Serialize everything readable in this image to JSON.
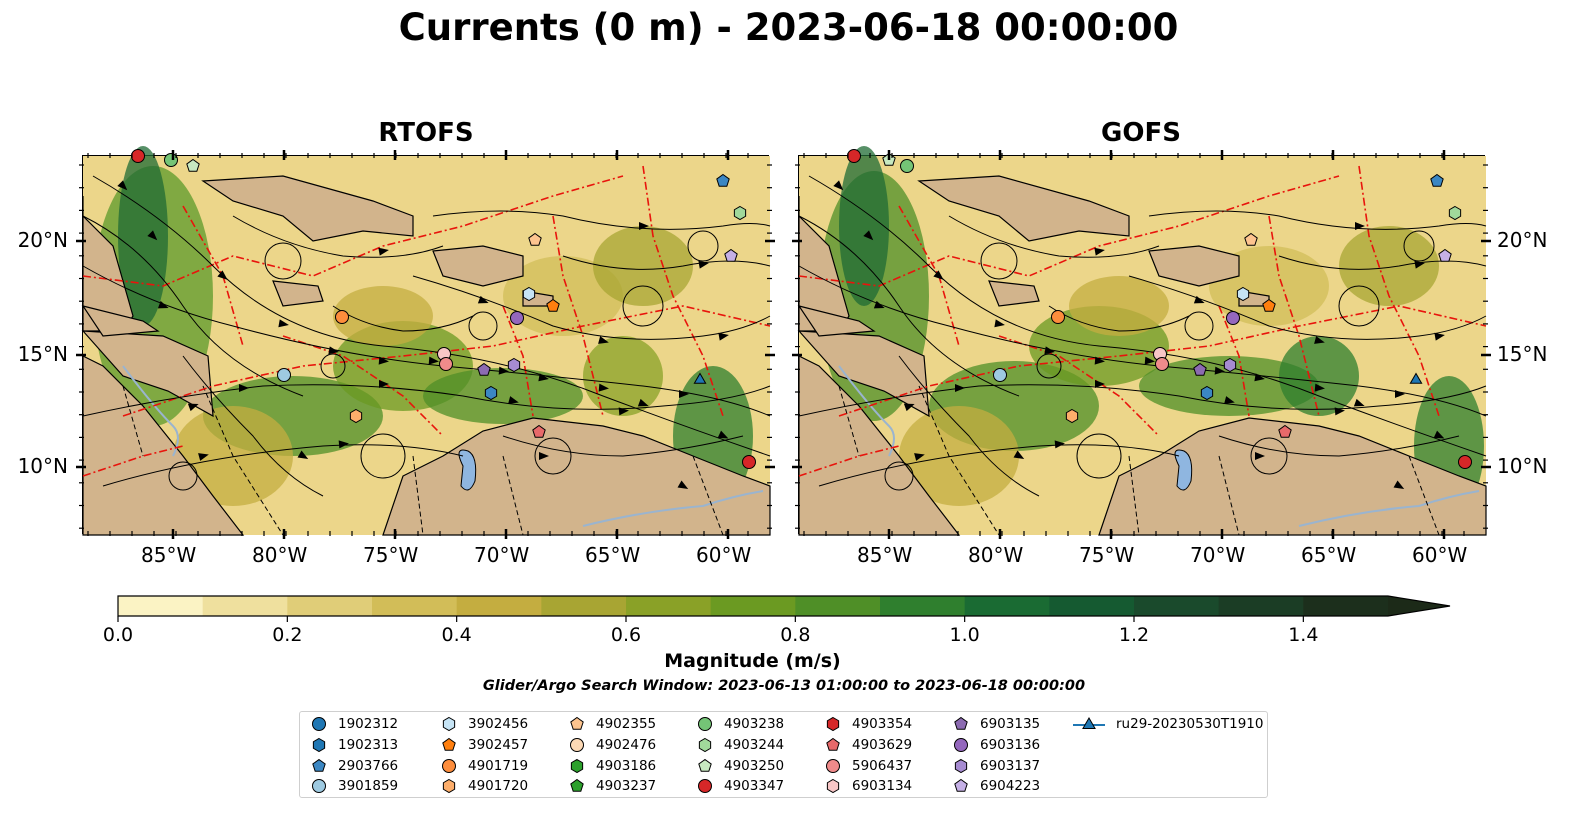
{
  "title": "Currents (0 m) - 2023-06-18 00:00:00",
  "panels": [
    {
      "title": "RTOFS"
    },
    {
      "title": "GOFS"
    }
  ],
  "x_ticks": [
    "85°W",
    "80°W",
    "75°W",
    "70°W",
    "65°W",
    "60°W"
  ],
  "y_ticks": [
    "20°N",
    "15°N",
    "10°N"
  ],
  "colorbar": {
    "label": "Magnitude (m/s)",
    "ticks": [
      "0.0",
      "0.2",
      "0.4",
      "0.6",
      "0.8",
      "1.0",
      "1.2",
      "1.4"
    ],
    "range": [
      0,
      1.5
    ],
    "extend": "max",
    "colors": [
      "#fbf3c4",
      "#efe09e",
      "#e0cd78",
      "#d2bd58",
      "#c4ad40",
      "#a8a533",
      "#8aa127",
      "#6b9a22",
      "#4f8f27",
      "#2f7f2e",
      "#1a6b33",
      "#155a31",
      "#1a4a2c",
      "#1b3d25",
      "#1c2f1c"
    ]
  },
  "search_window": "Glider/Argo Search Window: 2023-06-13 01:00:00 to 2023-06-18 00:00:00",
  "legend": [
    {
      "label": "1902312",
      "marker": "circle",
      "color": "#1f77b4"
    },
    {
      "label": "1902313",
      "marker": "hexagon",
      "color": "#1f77b4"
    },
    {
      "label": "2903766",
      "marker": "pentagon",
      "color": "#3b87c3"
    },
    {
      "label": "3901859",
      "marker": "circle",
      "color": "#9ecae1"
    },
    {
      "label": "3902456",
      "marker": "hexagon",
      "color": "#c6e4f5"
    },
    {
      "label": "3902457",
      "marker": "pentagon",
      "color": "#ff7f0e"
    },
    {
      "label": "4901719",
      "marker": "circle",
      "color": "#fd8d3c"
    },
    {
      "label": "4901720",
      "marker": "hexagon",
      "color": "#fdae6b"
    },
    {
      "label": "4902355",
      "marker": "pentagon",
      "color": "#fdc48f"
    },
    {
      "label": "4902476",
      "marker": "circle",
      "color": "#fdd9b5"
    },
    {
      "label": "4903186",
      "marker": "hexagon",
      "color": "#2ca02c"
    },
    {
      "label": "4903237",
      "marker": "pentagon",
      "color": "#2ca02c"
    },
    {
      "label": "4903238",
      "marker": "circle",
      "color": "#74c476"
    },
    {
      "label": "4903244",
      "marker": "hexagon",
      "color": "#a1d99b"
    },
    {
      "label": "4903250",
      "marker": "pentagon",
      "color": "#c7e9c0"
    },
    {
      "label": "4903347",
      "marker": "circle",
      "color": "#d62728"
    },
    {
      "label": "4903354",
      "marker": "hexagon",
      "color": "#d62728"
    },
    {
      "label": "4903629",
      "marker": "pentagon",
      "color": "#e7696a"
    },
    {
      "label": "5906437",
      "marker": "circle",
      "color": "#f08b8b"
    },
    {
      "label": "6903134",
      "marker": "hexagon",
      "color": "#f8c6c6"
    },
    {
      "label": "6903135",
      "marker": "pentagon",
      "color": "#8c6bb1"
    },
    {
      "label": "6903136",
      "marker": "circle",
      "color": "#9467bd"
    },
    {
      "label": "6903137",
      "marker": "hexagon",
      "color": "#a68bd1"
    },
    {
      "label": "6904223",
      "marker": "pentagon",
      "color": "#c5b0e6"
    },
    {
      "label": "ru29-20230530T1910",
      "marker": "triangle-line",
      "color": "#1f77b4"
    }
  ]
}
